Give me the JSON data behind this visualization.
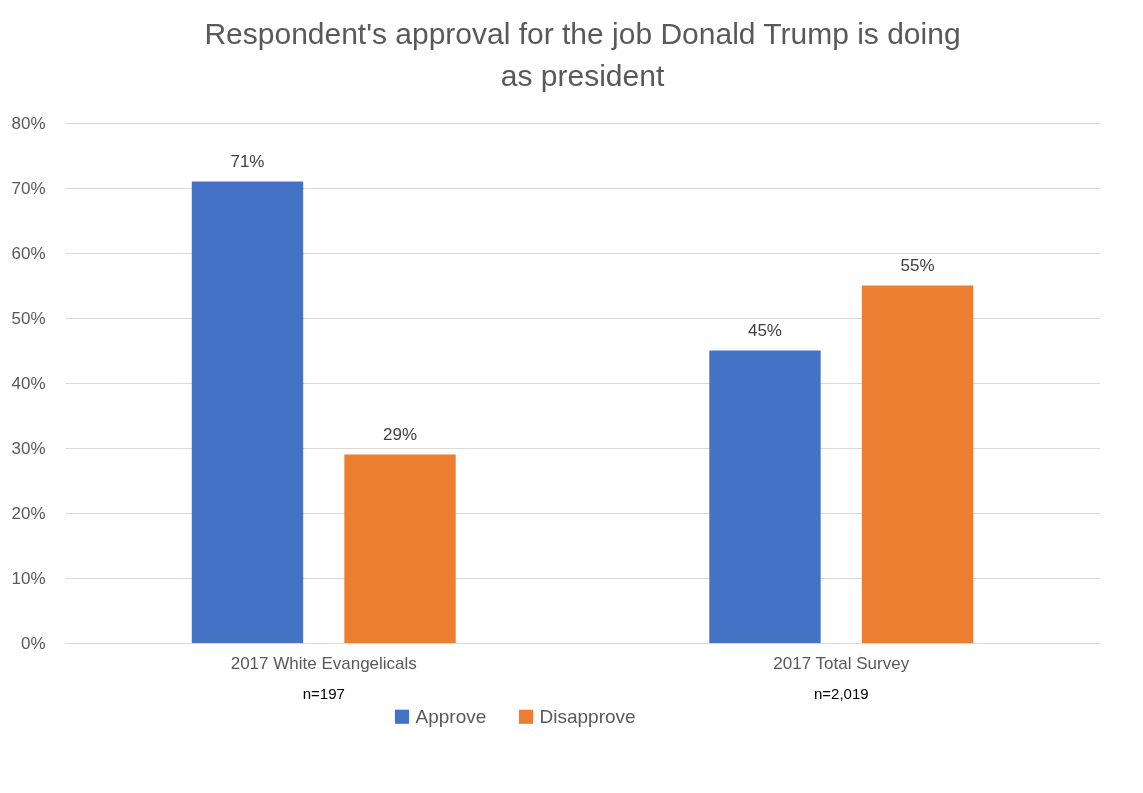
{
  "chart_data": {
    "type": "bar",
    "title": "Respondent's approval for the job Donald Trump is doing as president",
    "categories": [
      "2017 White Evangelicals",
      "2017 Total Survey"
    ],
    "series": [
      {
        "name": "Approve",
        "color": "#4472c4",
        "values": [
          71,
          45
        ],
        "value_labels": [
          "71%",
          "45%"
        ]
      },
      {
        "name": "Disapprove",
        "color": "#ed7d31",
        "values": [
          29,
          55
        ],
        "value_labels": [
          "29%",
          "55%"
        ]
      }
    ],
    "ylim": [
      0,
      80
    ],
    "yticks": [
      {
        "value": 0,
        "label": "0%"
      },
      {
        "value": 10,
        "label": "10%"
      },
      {
        "value": 20,
        "label": "20%"
      },
      {
        "value": 30,
        "label": "30%"
      },
      {
        "value": 40,
        "label": "40%"
      },
      {
        "value": 50,
        "label": "50%"
      },
      {
        "value": 60,
        "label": "60%"
      },
      {
        "value": 70,
        "label": "70%"
      },
      {
        "value": 80,
        "label": "80%"
      }
    ],
    "grid": "y",
    "legend": "bottom",
    "annotations": [
      "n=197",
      "n=2,019"
    ]
  }
}
